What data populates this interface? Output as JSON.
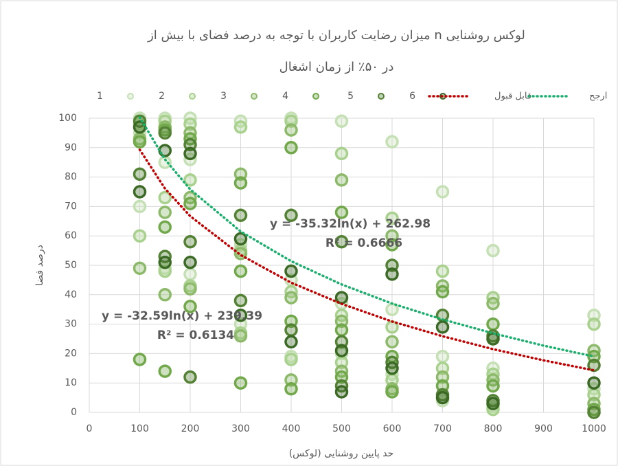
{
  "chart_data": {
    "type": "scatter",
    "title": "میزان رضایت کاربران با توجه به درصد فضای با بیش از n لوکس روشنایی",
    "subtitle": "در ۵۰٪ از زمان اشغال",
    "x_label": "حد پایین روشنایی (لوکس)",
    "y_label": "درصد فضا",
    "xlim": [
      0,
      1000
    ],
    "ylim": [
      0,
      100
    ],
    "xticks": [
      0,
      100,
      200,
      300,
      400,
      500,
      600,
      700,
      800,
      900,
      1000
    ],
    "yticks": [
      0,
      10,
      20,
      30,
      40,
      50,
      60,
      70,
      80,
      90,
      100
    ],
    "grid": true,
    "legend": "top",
    "series": [
      {
        "name": "1",
        "color": "#c5e0b4",
        "x": [
          100,
          100,
          100,
          150,
          150,
          150,
          200,
          200,
          200,
          300,
          300,
          300,
          400,
          400,
          400,
          500,
          500,
          500,
          600,
          600,
          600,
          700,
          700,
          700,
          800,
          800,
          800,
          1000,
          1000
        ],
        "values": [
          100,
          70,
          95,
          100,
          85,
          49,
          100,
          86,
          47,
          99,
          57,
          30,
          100,
          45,
          19,
          99,
          37,
          20,
          92,
          35,
          13,
          75,
          19,
          4,
          55,
          15,
          2,
          33,
          8
        ]
      },
      {
        "name": "2",
        "color": "#a9d18e",
        "x": [
          100,
          100,
          150,
          150,
          150,
          200,
          200,
          200,
          300,
          300,
          300,
          400,
          400,
          400,
          500,
          500,
          500,
          600,
          600,
          600,
          700,
          700,
          800,
          800,
          800,
          1000,
          1000
        ],
        "values": [
          98,
          60,
          99,
          73,
          48,
          98,
          79,
          43,
          97,
          55,
          27,
          99,
          41,
          18,
          88,
          33,
          17,
          66,
          29,
          11,
          48,
          15,
          39,
          13,
          1,
          30,
          6
        ]
      },
      {
        "name": "3",
        "color": "#8dba6a",
        "x": [
          100,
          100,
          150,
          150,
          150,
          200,
          200,
          200,
          300,
          300,
          300,
          400,
          400,
          400,
          500,
          500,
          500,
          600,
          600,
          600,
          700,
          700,
          800,
          800,
          1000,
          1000
        ],
        "values": [
          93,
          49,
          97,
          68,
          40,
          95,
          73,
          42,
          81,
          54,
          26,
          96,
          39,
          11,
          79,
          31,
          14,
          60,
          24,
          8,
          43,
          12,
          37,
          11,
          21,
          3
        ]
      },
      {
        "name": "4",
        "color": "#70a84a",
        "x": [
          100,
          100,
          150,
          150,
          150,
          200,
          200,
          200,
          300,
          300,
          300,
          400,
          400,
          400,
          500,
          500,
          500,
          600,
          600,
          600,
          700,
          700,
          800,
          800,
          1000,
          1000
        ],
        "values": [
          92,
          18,
          96,
          63,
          14,
          93,
          71,
          36,
          78,
          48,
          10,
          90,
          31,
          8,
          68,
          28,
          12,
          57,
          19,
          7,
          41,
          9,
          30,
          9,
          19,
          1
        ]
      },
      {
        "name": "5",
        "color": "#548235",
        "x": [
          100,
          100,
          150,
          150,
          200,
          200,
          200,
          300,
          300,
          400,
          400,
          500,
          500,
          500,
          600,
          600,
          700,
          700,
          800,
          800,
          1000,
          1000
        ],
        "values": [
          81,
          99,
          95,
          53,
          91,
          58,
          12,
          67,
          38,
          67,
          28,
          58,
          24,
          9,
          50,
          17,
          33,
          6,
          26,
          4,
          16,
          0
        ]
      },
      {
        "name": "6",
        "color": "#3b6a25",
        "x": [
          100,
          100,
          150,
          150,
          200,
          200,
          300,
          300,
          400,
          400,
          500,
          500,
          500,
          600,
          600,
          700,
          700,
          800,
          800,
          1000
        ],
        "values": [
          75,
          97,
          89,
          51,
          88,
          51,
          59,
          33,
          48,
          24,
          39,
          21,
          7,
          47,
          15,
          29,
          5,
          25,
          3,
          10
        ]
      }
    ],
    "trendlines": [
      {
        "name": "قابل قبول",
        "color": "#c00000",
        "x": [
          100,
          150,
          200,
          300,
          400,
          500,
          600,
          700,
          800,
          900,
          1000
        ],
        "values": [
          89.3,
          76.1,
          66.7,
          53.5,
          44.1,
          36.9,
          30.9,
          25.9,
          21.5,
          17.7,
          14.3
        ],
        "equation": "y = -32.59ln(x) + 239.39",
        "r2": "R² = 0.6134"
      },
      {
        "name": "ارجح",
        "color": "#1aaf6c",
        "x": [
          100,
          150,
          200,
          300,
          400,
          500,
          600,
          700,
          800,
          900,
          1000
        ],
        "values": [
          100.3,
          86.0,
          75.8,
          61.5,
          51.4,
          43.5,
          37.0,
          31.6,
          26.9,
          22.7,
          19.0
        ],
        "equation": "y = -35.32ln(x) + 262.98",
        "r2": "R² = 0.6666"
      }
    ]
  }
}
